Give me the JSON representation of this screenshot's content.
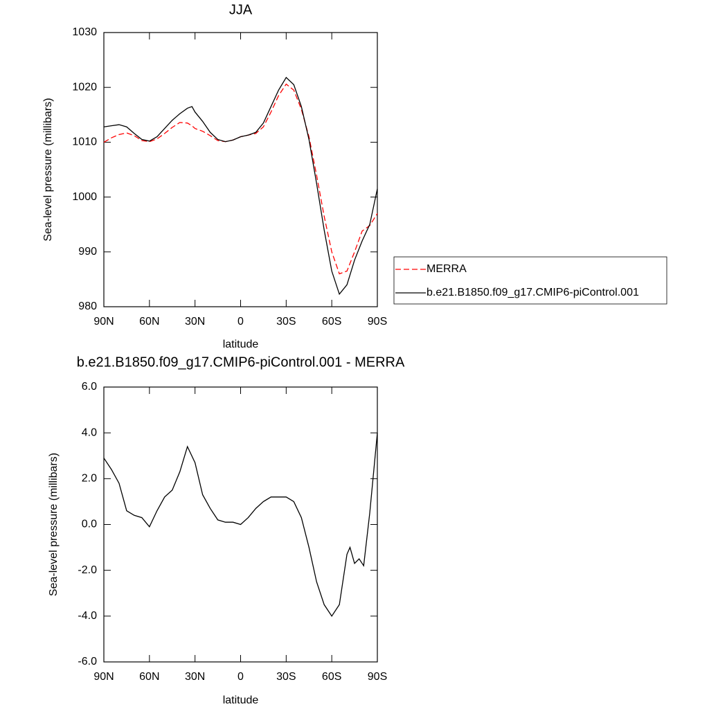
{
  "chart_data": [
    {
      "type": "line",
      "title": "JJA",
      "xlabel": "latitude",
      "ylabel": "Sea-level pressure (millibars)",
      "x": [
        90,
        85,
        80,
        75,
        70,
        65,
        60,
        55,
        50,
        45,
        40,
        35,
        32,
        30,
        25,
        20,
        15,
        10,
        5,
        0,
        -5,
        -10,
        -15,
        -20,
        -25,
        -30,
        -35,
        -40,
        -45,
        -50,
        -55,
        -60,
        -65,
        -70,
        -75,
        -80,
        -85,
        -90
      ],
      "series": [
        {
          "name": "MERRA",
          "color": "#ff0000",
          "dash": true,
          "values": [
            1010,
            1010.8,
            1011.4,
            1011.7,
            1011.2,
            1010.3,
            1010.1,
            1010.6,
            1011.6,
            1012.7,
            1013.6,
            1013.5,
            1013,
            1012.5,
            1012,
            1011.2,
            1010.3,
            1010.1,
            1010.4,
            1011,
            1011.3,
            1011.6,
            1012.8,
            1015.5,
            1018.5,
            1020.6,
            1019.5,
            1016,
            1011,
            1004,
            996.5,
            990,
            986,
            986.5,
            990,
            993.8,
            994.8,
            997
          ]
        },
        {
          "name": "b.e21.B1850.f09_g17.CMIP6-piControl.001",
          "color": "#000000",
          "dash": false,
          "values": [
            1012.8,
            1013,
            1013.2,
            1012.8,
            1011.6,
            1010.5,
            1010.2,
            1011,
            1012.5,
            1014,
            1015.2,
            1016.2,
            1016.5,
            1015.5,
            1013.8,
            1011.8,
            1010.5,
            1010.1,
            1010.4,
            1011,
            1011.3,
            1011.8,
            1013.5,
            1016.5,
            1019.5,
            1021.8,
            1020.5,
            1016.5,
            1010.5,
            1002.5,
            994,
            986.5,
            982.3,
            984,
            988.5,
            992,
            995,
            1001.5
          ]
        }
      ],
      "xlim": [
        90,
        -90
      ],
      "xticks": [
        {
          "value": 90,
          "label": "90N"
        },
        {
          "value": 60,
          "label": "60N"
        },
        {
          "value": 30,
          "label": "30N"
        },
        0,
        {
          "value": -30,
          "label": "30S"
        },
        {
          "value": -60,
          "label": "60S"
        },
        {
          "value": -90,
          "label": "90S"
        }
      ],
      "ylim": [
        980,
        1030
      ],
      "yticks": [
        980,
        990,
        1000,
        1010,
        1020,
        1030
      ],
      "legend": "right"
    },
    {
      "type": "line",
      "title": "b.e21.B1850.f09_g17.CMIP6-piControl.001 - MERRA",
      "xlabel": "latitude",
      "ylabel": "Sea-level pressure (millibars)",
      "x": [
        90,
        85,
        80,
        75,
        70,
        65,
        60,
        55,
        50,
        45,
        40,
        35,
        30,
        25,
        20,
        15,
        10,
        5,
        0,
        -5,
        -10,
        -15,
        -20,
        -25,
        -30,
        -35,
        -40,
        -45,
        -50,
        -55,
        -60,
        -65,
        -70,
        -72,
        -75,
        -78,
        -81,
        -85,
        -90
      ],
      "series": [
        {
          "color": "#000000",
          "dash": false,
          "values": [
            2.9,
            2.4,
            1.8,
            0.6,
            0.4,
            0.3,
            -0.1,
            0.6,
            1.2,
            1.5,
            2.3,
            3.4,
            2.7,
            1.3,
            0.7,
            0.2,
            0.1,
            0.1,
            0,
            0.3,
            0.7,
            1,
            1.2,
            1.2,
            1.2,
            1,
            0.3,
            -1,
            -2.5,
            -3.5,
            -4,
            -3.5,
            -1.3,
            -1,
            -1.7,
            -1.5,
            -1.8,
            0.5,
            4
          ]
        }
      ],
      "xlim": [
        90,
        -90
      ],
      "xticks": [
        {
          "value": 90,
          "label": "90N"
        },
        {
          "value": 60,
          "label": "60N"
        },
        {
          "value": 30,
          "label": "30N"
        },
        0,
        {
          "value": -30,
          "label": "30S"
        },
        {
          "value": -60,
          "label": "60S"
        },
        {
          "value": -90,
          "label": "90S"
        }
      ],
      "ylim": [
        -6,
        6
      ],
      "yticks": [
        {
          "value": -6,
          "label": "-6.0"
        },
        {
          "value": -4,
          "label": "-4.0"
        },
        {
          "value": -2,
          "label": "-2.0"
        },
        {
          "value": 0,
          "label": "0.0"
        },
        {
          "value": 2,
          "label": "2.0"
        },
        {
          "value": 4,
          "label": "4.0"
        },
        {
          "value": 6,
          "label": "6.0"
        }
      ]
    }
  ]
}
